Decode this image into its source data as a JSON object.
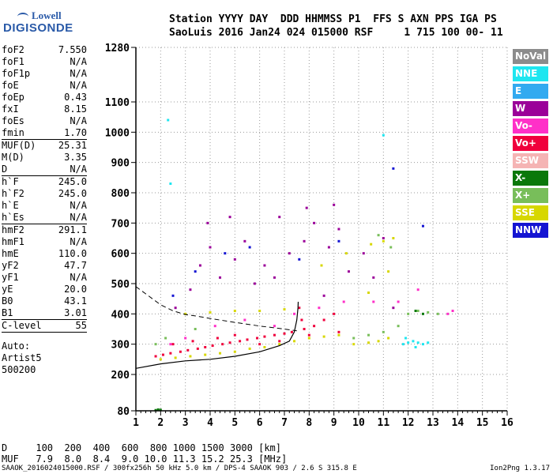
{
  "logo": {
    "line1": "Lowell",
    "line2": "DIGISONDE"
  },
  "header": {
    "labels": "Station YYYY DAY  DDD HHMMSS P1  FFS S AXN PPS IGA PS",
    "values": "SaoLuis 2016 Jan24 024 015000 RSF     1 715 100 00- 11"
  },
  "params": [
    {
      "name": "foF2",
      "value": "7.550"
    },
    {
      "name": "foF1",
      "value": "N/A"
    },
    {
      "name": "foF1p",
      "value": "N/A"
    },
    {
      "name": "foE",
      "value": "N/A"
    },
    {
      "name": "foEp",
      "value": "0.43"
    },
    {
      "name": "fxI",
      "value": "8.15"
    },
    {
      "name": "foEs",
      "value": "N/A"
    },
    {
      "name": "fmin",
      "value": "1.70"
    },
    {
      "name": "MUF(D)",
      "value": "25.31"
    },
    {
      "name": "M(D)",
      "value": "3.35"
    },
    {
      "name": "D",
      "value": "N/A"
    },
    {
      "name": "h`F",
      "value": "245.0"
    },
    {
      "name": "h`F2",
      "value": "245.0"
    },
    {
      "name": "h`E",
      "value": "N/A"
    },
    {
      "name": "h`Es",
      "value": "N/A"
    },
    {
      "name": "hmF2",
      "value": "291.1"
    },
    {
      "name": "hmF1",
      "value": "N/A"
    },
    {
      "name": "hmE",
      "value": "110.0"
    },
    {
      "name": "yF2",
      "value": "47.7"
    },
    {
      "name": "yF1",
      "value": "N/A"
    },
    {
      "name": "yE",
      "value": "20.0"
    },
    {
      "name": "B0",
      "value": "43.1"
    },
    {
      "name": "B1",
      "value": "3.01"
    },
    {
      "name": "C-level",
      "value": "55"
    }
  ],
  "autoscaling": {
    "line1": "Auto:",
    "line2": "Artist5",
    "line3": "500200"
  },
  "legend": [
    {
      "label": "NoVal",
      "color": "#8c8c8c"
    },
    {
      "label": "NNE",
      "color": "#1ee6f0"
    },
    {
      "label": "E",
      "color": "#32aaf0"
    },
    {
      "label": "W",
      "color": "#9b0099"
    },
    {
      "label": "Vo-",
      "color": "#ff30c8"
    },
    {
      "label": "Vo+",
      "color": "#f0003c"
    },
    {
      "label": "SSW",
      "color": "#f5b4b4"
    },
    {
      "label": "X-",
      "color": "#0a780a"
    },
    {
      "label": "X+",
      "color": "#78be5a"
    },
    {
      "label": "SSE",
      "color": "#d7d700"
    },
    {
      "label": "NNW",
      "color": "#1414d2"
    }
  ],
  "footer": {
    "d_row": "D     100  200  400  600  800 1000 1500 3000 [km]",
    "muf_row": "MUF   7.9  8.0  8.4  9.0 10.0 11.3 15.2 25.3 [MHz]",
    "file_line": "SAAOK_2016024015000.RSF / 300fx256h 50 kHz 5.0 km / DPS-4 SAAOK 903 / 2.6 S 315.8 E",
    "version": "Ion2Png 1.3.17"
  },
  "chart_data": {
    "type": "scatter",
    "x_ticks": [
      "1",
      "2",
      "3",
      "4",
      "5",
      "6",
      "7",
      "8",
      "9",
      "10",
      "11",
      "12",
      "13",
      "14",
      "15",
      "16"
    ],
    "y_ticks": [
      "80",
      "200",
      "300",
      "400",
      "500",
      "600",
      "700",
      "800",
      "900",
      "1000",
      "1100",
      "1280"
    ],
    "xlim": [
      1,
      16
    ],
    "ylim": [
      80,
      1280
    ],
    "grid": true,
    "series": [
      {
        "name": "Vo+",
        "color": "#f0003c",
        "points": [
          [
            1.8,
            260
          ],
          [
            2.1,
            265
          ],
          [
            2.4,
            270
          ],
          [
            2.8,
            275
          ],
          [
            3.1,
            280
          ],
          [
            3.5,
            285
          ],
          [
            3.8,
            290
          ],
          [
            4.1,
            295
          ],
          [
            4.5,
            300
          ],
          [
            4.8,
            305
          ],
          [
            5.2,
            310
          ],
          [
            5.5,
            315
          ],
          [
            5.9,
            320
          ],
          [
            6.2,
            325
          ],
          [
            6.6,
            330
          ],
          [
            7.0,
            335
          ],
          [
            7.3,
            340
          ],
          [
            7.8,
            350
          ],
          [
            8.2,
            360
          ],
          [
            8.6,
            380
          ],
          [
            9.0,
            400
          ],
          [
            7.6,
            420
          ],
          [
            7.7,
            380
          ],
          [
            8.0,
            330
          ],
          [
            9.2,
            340
          ],
          [
            2.5,
            300
          ],
          [
            3.3,
            310
          ],
          [
            4.3,
            320
          ],
          [
            5.0,
            330
          ],
          [
            6.0,
            300
          ],
          [
            6.8,
            310
          ]
        ]
      },
      {
        "name": "W",
        "color": "#9b0099",
        "points": [
          [
            2.6,
            420
          ],
          [
            3.2,
            480
          ],
          [
            3.6,
            560
          ],
          [
            4.0,
            620
          ],
          [
            4.4,
            520
          ],
          [
            5.0,
            580
          ],
          [
            5.4,
            640
          ],
          [
            5.8,
            500
          ],
          [
            6.2,
            560
          ],
          [
            6.6,
            520
          ],
          [
            7.2,
            600
          ],
          [
            7.8,
            640
          ],
          [
            8.2,
            700
          ],
          [
            8.8,
            620
          ],
          [
            9.2,
            680
          ],
          [
            9.6,
            540
          ],
          [
            10.2,
            600
          ],
          [
            11.0,
            650
          ],
          [
            10.6,
            520
          ],
          [
            11.4,
            420
          ],
          [
            8.6,
            460
          ],
          [
            3.9,
            700
          ],
          [
            4.8,
            720
          ],
          [
            6.8,
            720
          ],
          [
            7.9,
            750
          ],
          [
            9.0,
            760
          ]
        ]
      },
      {
        "name": "SSE",
        "color": "#d7d700",
        "points": [
          [
            2.0,
            250
          ],
          [
            2.6,
            255
          ],
          [
            3.2,
            260
          ],
          [
            3.8,
            265
          ],
          [
            4.4,
            270
          ],
          [
            5.0,
            275
          ],
          [
            5.6,
            285
          ],
          [
            6.2,
            290
          ],
          [
            6.8,
            300
          ],
          [
            7.4,
            310
          ],
          [
            8.0,
            320
          ],
          [
            8.6,
            325
          ],
          [
            9.2,
            330
          ],
          [
            9.8,
            300
          ],
          [
            10.4,
            305
          ],
          [
            10.8,
            310
          ],
          [
            11.2,
            320
          ],
          [
            3.0,
            400
          ],
          [
            4.0,
            405
          ],
          [
            5.0,
            410
          ],
          [
            6.0,
            410
          ],
          [
            7.0,
            415
          ],
          [
            8.5,
            560
          ],
          [
            9.5,
            600
          ],
          [
            10.5,
            630
          ],
          [
            11.0,
            640
          ],
          [
            11.4,
            650
          ],
          [
            10.4,
            470
          ],
          [
            11.2,
            540
          ]
        ]
      },
      {
        "name": "NNE",
        "color": "#1ee6f0",
        "points": [
          [
            11.8,
            300
          ],
          [
            12.0,
            305
          ],
          [
            12.2,
            310
          ],
          [
            12.4,
            305
          ],
          [
            12.6,
            300
          ],
          [
            12.8,
            305
          ],
          [
            11.9,
            320
          ],
          [
            12.3,
            290
          ],
          [
            2.3,
            1040
          ],
          [
            2.4,
            830
          ],
          [
            11.0,
            990
          ]
        ]
      },
      {
        "name": "X+",
        "color": "#78be5a",
        "points": [
          [
            9.8,
            320
          ],
          [
            10.4,
            330
          ],
          [
            11.0,
            340
          ],
          [
            11.6,
            360
          ],
          [
            12.0,
            400
          ],
          [
            12.4,
            410
          ],
          [
            12.8,
            405
          ],
          [
            13.2,
            400
          ],
          [
            1.8,
            300
          ],
          [
            2.2,
            320
          ],
          [
            3.4,
            350
          ],
          [
            10.8,
            660
          ],
          [
            11.3,
            620
          ]
        ]
      },
      {
        "name": "Vo-",
        "color": "#ff30c8",
        "points": [
          [
            2.4,
            300
          ],
          [
            3.0,
            320
          ],
          [
            4.2,
            360
          ],
          [
            5.4,
            380
          ],
          [
            6.6,
            360
          ],
          [
            7.4,
            400
          ],
          [
            8.4,
            420
          ],
          [
            9.4,
            440
          ],
          [
            10.6,
            440
          ],
          [
            11.6,
            440
          ],
          [
            12.4,
            480
          ],
          [
            13.6,
            400
          ],
          [
            13.8,
            410
          ]
        ]
      },
      {
        "name": "X-",
        "color": "#0a780a",
        "points": [
          [
            1.8,
            82
          ],
          [
            1.9,
            84
          ],
          [
            2.0,
            83
          ],
          [
            12.3,
            410
          ],
          [
            12.6,
            400
          ]
        ]
      },
      {
        "name": "NNW",
        "color": "#1414d2",
        "points": [
          [
            2.5,
            460
          ],
          [
            3.4,
            540
          ],
          [
            4.6,
            600
          ],
          [
            5.6,
            620
          ],
          [
            7.6,
            580
          ],
          [
            9.2,
            640
          ],
          [
            11.4,
            880
          ],
          [
            12.6,
            690
          ]
        ]
      }
    ],
    "trace_points": [
      [
        1,
        220
      ],
      [
        2,
        235
      ],
      [
        3,
        245
      ],
      [
        4,
        250
      ],
      [
        5,
        260
      ],
      [
        6,
        275
      ],
      [
        6.8,
        295
      ],
      [
        7.2,
        310
      ],
      [
        7.4,
        340
      ],
      [
        7.5,
        380
      ],
      [
        7.55,
        420
      ],
      [
        7.56,
        440
      ]
    ],
    "dashed_points": [
      [
        1,
        490
      ],
      [
        1.5,
        460
      ],
      [
        2.0,
        430
      ],
      [
        2.5,
        410
      ],
      [
        3.0,
        398
      ],
      [
        3.5,
        392
      ],
      [
        4.0,
        385
      ],
      [
        5.0,
        372
      ],
      [
        6.0,
        360
      ],
      [
        7.0,
        350
      ],
      [
        7.5,
        344
      ]
    ]
  }
}
